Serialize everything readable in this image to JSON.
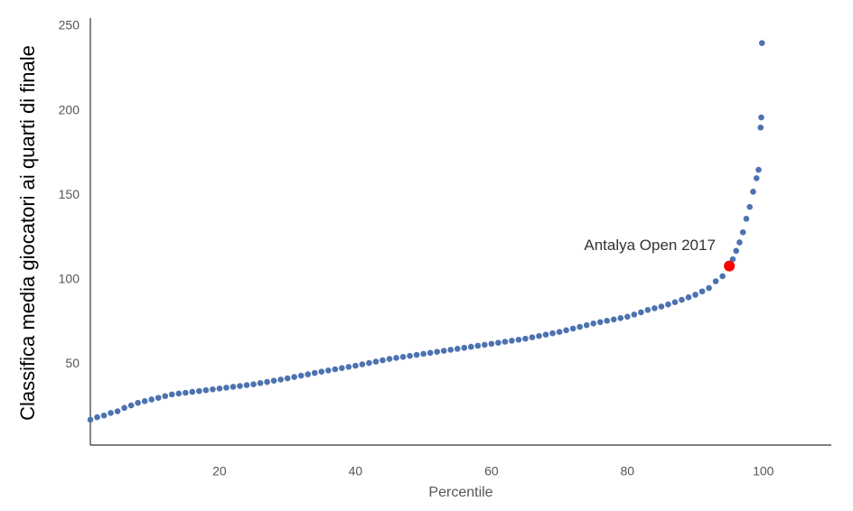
{
  "chart_data": {
    "type": "scatter",
    "x_label": "Percentile",
    "y_label": "Classifica media giocatori ai quarti di finale",
    "xlim": [
      1,
      110
    ],
    "ylim": [
      2,
      250
    ],
    "xticks": [
      20,
      40,
      60,
      80,
      100
    ],
    "yticks": [
      50,
      100,
      150,
      200,
      250
    ],
    "grid": false,
    "series": [
      {
        "color": "#4c72b0",
        "x": [
          1,
          2,
          3,
          4,
          5,
          6,
          7,
          8,
          9,
          10,
          11,
          12,
          13,
          14,
          15,
          16,
          17,
          18,
          19,
          20,
          21,
          22,
          23,
          24,
          25,
          26,
          27,
          28,
          29,
          30,
          31,
          32,
          33,
          34,
          35,
          36,
          37,
          38,
          39,
          40,
          41,
          42,
          43,
          44,
          45,
          46,
          47,
          48,
          49,
          50,
          51,
          52,
          53,
          54,
          55,
          56,
          57,
          58,
          59,
          60,
          61,
          62,
          63,
          64,
          65,
          66,
          67,
          68,
          69,
          70,
          71,
          72,
          73,
          74,
          75,
          76,
          77,
          78,
          79,
          80,
          81,
          82,
          83,
          84,
          85,
          86,
          87,
          88,
          89,
          90,
          91,
          92,
          93,
          94,
          95.5,
          96,
          96.5,
          97,
          97.5,
          98,
          98.5,
          99,
          99.3,
          99.6,
          99.7,
          99.8
        ],
        "values": [
          17,
          18.5,
          19.5,
          21,
          22,
          24,
          25.5,
          27,
          28,
          29,
          30,
          31,
          32,
          32.5,
          33,
          33.5,
          34,
          34.5,
          35,
          35.5,
          36,
          36.5,
          37,
          37.5,
          38,
          38.7,
          39.4,
          40.1,
          40.8,
          41.5,
          42.3,
          43.1,
          43.9,
          44.7,
          45.5,
          46.2,
          46.9,
          47.6,
          48.3,
          49,
          49.8,
          50.6,
          51.4,
          52.2,
          53,
          53.6,
          54.2,
          54.8,
          55.4,
          56,
          56.6,
          57.2,
          57.8,
          58.4,
          59,
          59.6,
          60.2,
          60.8,
          61.4,
          62,
          62.6,
          63.2,
          63.8,
          64.4,
          65,
          65.8,
          66.6,
          67.4,
          68.2,
          69,
          70,
          71,
          72,
          73,
          74,
          74.8,
          75.6,
          76.4,
          77.2,
          78,
          79.3,
          80.6,
          82,
          83,
          84,
          85.3,
          86.6,
          88,
          89.5,
          91,
          93,
          95,
          99,
          102,
          112,
          117,
          122,
          128,
          136,
          143,
          152,
          160,
          165,
          190,
          196,
          240
        ]
      }
    ],
    "highlight": {
      "label": "Antalya Open 2017",
      "x": 95,
      "y": 108,
      "color": "#ff0000"
    }
  }
}
